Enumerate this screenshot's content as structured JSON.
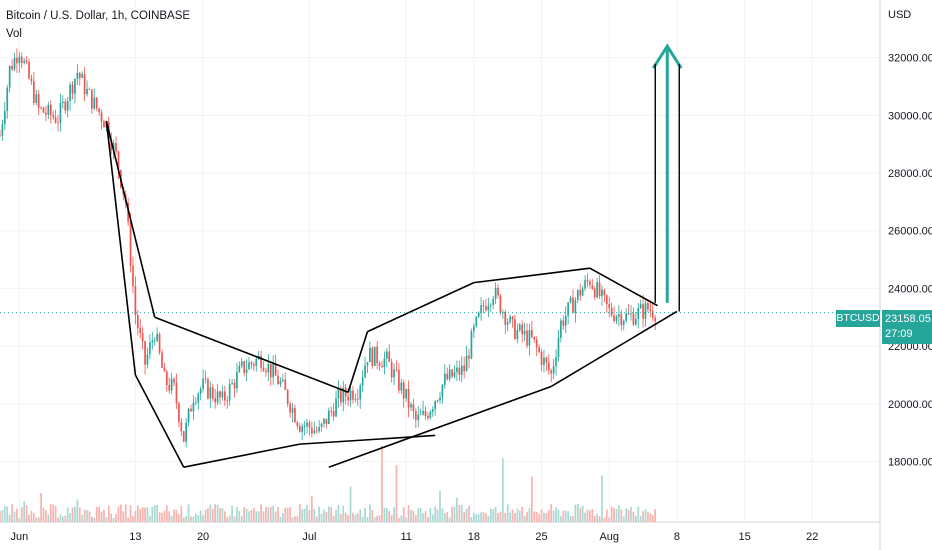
{
  "header": {
    "title": "Bitcoin / U.S. Dollar, 1h, COINBASE",
    "volume_label": "Vol",
    "currency": "USD"
  },
  "last_price": {
    "symbol": "BTCUSD",
    "price": "23158.05",
    "countdown": "27:09",
    "value": 23158.05
  },
  "colors": {
    "up": "#26a69a",
    "down": "#ef5350",
    "vol_up": "#a8d8d2",
    "vol_down": "#f7b1ae",
    "grid": "#f0f3fa",
    "pattern_lines": "#000000",
    "arrow": "#26a69a"
  },
  "chart_data": {
    "type": "line",
    "title": "Bitcoin / U.S. Dollar, 1h, COINBASE",
    "xlabel": "",
    "ylabel": "",
    "y_tick_labels": [
      "18000.00",
      "20000.00",
      "22000.00",
      "24000.00",
      "26000.00",
      "28000.00",
      "30000.00",
      "32000.00"
    ],
    "y_ticks": [
      18000,
      20000,
      22000,
      24000,
      26000,
      28000,
      30000,
      32000
    ],
    "x_tick_labels": [
      "Jun",
      "13",
      "20",
      "Jul",
      "11",
      "18",
      "25",
      "Aug",
      "8",
      "15",
      "22"
    ],
    "x_ticks": [
      "2022-06-01",
      "2022-06-13",
      "2022-06-20",
      "2022-07-01",
      "2022-07-11",
      "2022-07-18",
      "2022-07-25",
      "2022-08-01",
      "2022-08-08",
      "2022-08-15",
      "2022-08-22"
    ],
    "ylim": [
      15900,
      34000
    ],
    "xlim": [
      "2022-05-30",
      "2022-08-29"
    ],
    "grid": true,
    "series": [
      {
        "name": "BTCUSD",
        "x": [
          "2022-05-30",
          "2022-05-31",
          "2022-06-01",
          "2022-06-03",
          "2022-06-05",
          "2022-06-07",
          "2022-06-08",
          "2022-06-10",
          "2022-06-11",
          "2022-06-12",
          "2022-06-13",
          "2022-06-14",
          "2022-06-15",
          "2022-06-16",
          "2022-06-17",
          "2022-06-18",
          "2022-06-19",
          "2022-06-20",
          "2022-06-22",
          "2022-06-24",
          "2022-06-26",
          "2022-06-28",
          "2022-06-30",
          "2022-07-01",
          "2022-07-02",
          "2022-07-04",
          "2022-07-06",
          "2022-07-07",
          "2022-07-09",
          "2022-07-11",
          "2022-07-12",
          "2022-07-13",
          "2022-07-15",
          "2022-07-17",
          "2022-07-18",
          "2022-07-19",
          "2022-07-20",
          "2022-07-22",
          "2022-07-24",
          "2022-07-26",
          "2022-07-27",
          "2022-07-29",
          "2022-07-30",
          "2022-08-01",
          "2022-08-03",
          "2022-08-05",
          "2022-08-06"
        ],
        "values": [
          29300,
          31600,
          32300,
          30200,
          29900,
          31500,
          30800,
          29700,
          28600,
          27000,
          23100,
          21400,
          22500,
          20800,
          20500,
          18800,
          20300,
          20600,
          20100,
          21200,
          21600,
          20700,
          19300,
          19200,
          19000,
          20200,
          20500,
          21700,
          21500,
          20200,
          19400,
          19600,
          20800,
          21200,
          22500,
          23400,
          23900,
          22600,
          22200,
          21000,
          22800,
          23900,
          24300,
          23200,
          23000,
          23300,
          23158
        ]
      }
    ],
    "annotations": [
      {
        "type": "line",
        "from": [
          "2022-06-10",
          29800
        ],
        "to": [
          "2022-06-15",
          23000
        ]
      },
      {
        "type": "line",
        "from": [
          "2022-06-10",
          29800
        ],
        "to": [
          "2022-06-13",
          21000
        ]
      },
      {
        "type": "line",
        "from": [
          "2022-06-13",
          21000
        ],
        "to": [
          "2022-06-18",
          17800
        ]
      },
      {
        "type": "line",
        "from": [
          "2022-06-15",
          23000
        ],
        "to": [
          "2022-07-05",
          20400
        ]
      },
      {
        "type": "line",
        "from": [
          "2022-06-18",
          17800
        ],
        "to": [
          "2022-06-30",
          18600
        ]
      },
      {
        "type": "line",
        "from": [
          "2022-06-30",
          18600
        ],
        "to": [
          "2022-07-14",
          18900
        ]
      },
      {
        "type": "line",
        "from": [
          "2022-07-05",
          20400
        ],
        "to": [
          "2022-07-07",
          22500
        ]
      },
      {
        "type": "line",
        "from": [
          "2022-07-07",
          22500
        ],
        "to": [
          "2022-07-18",
          24200
        ]
      },
      {
        "type": "line",
        "from": [
          "2022-07-18",
          24200
        ],
        "to": [
          "2022-07-30",
          24700
        ]
      },
      {
        "type": "line",
        "from": [
          "2022-07-30",
          24700
        ],
        "to": [
          "2022-08-06",
          23400
        ]
      },
      {
        "type": "line",
        "from": [
          "2022-07-03",
          17800
        ],
        "to": [
          "2022-07-26",
          20600
        ]
      },
      {
        "type": "line",
        "from": [
          "2022-07-26",
          20600
        ],
        "to": [
          "2022-08-08",
          23200
        ]
      },
      {
        "type": "arrow",
        "from": [
          "2022-08-07",
          23500
        ],
        "to": [
          "2022-08-07",
          32400
        ]
      }
    ]
  }
}
